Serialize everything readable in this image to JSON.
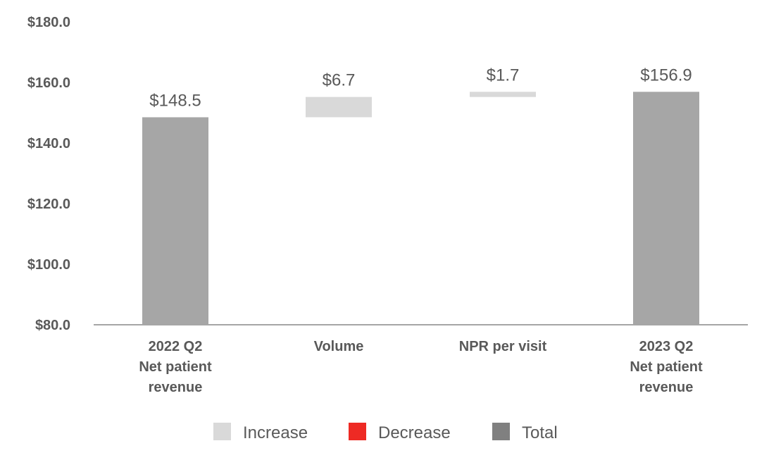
{
  "chart_data": {
    "type": "bar",
    "subtype": "waterfall",
    "categories": [
      [
        "2022 Q2",
        "Net patient",
        "revenue"
      ],
      [
        "Volume"
      ],
      [
        "NPR per visit"
      ],
      [
        "2023 Q2",
        "Net patient",
        "revenue"
      ]
    ],
    "steps": [
      {
        "kind": "total",
        "value": 148.5,
        "label": "$148.5"
      },
      {
        "kind": "increase",
        "value": 6.7,
        "label": "$6.7"
      },
      {
        "kind": "increase",
        "value": 1.7,
        "label": "$1.7"
      },
      {
        "kind": "total",
        "value": 156.9,
        "label": "$156.9"
      }
    ],
    "y_tick_labels": [
      "$80.0",
      "$100.0",
      "$120.0",
      "$140.0",
      "$160.0",
      "$180.0"
    ],
    "y_ticks": [
      80,
      100,
      120,
      140,
      160,
      180
    ],
    "ylim": [
      80,
      180
    ],
    "grid": false,
    "legend": {
      "position": "bottom",
      "items": [
        {
          "label": "Increase",
          "color": "#d9d9d9"
        },
        {
          "label": "Decrease",
          "color": "#ee2a24"
        },
        {
          "label": "Total",
          "color": "#808080"
        }
      ]
    },
    "colors": {
      "increase": "#d9d9d9",
      "decrease": "#ee2a24",
      "total": "#a6a6a6",
      "axis": "#a6a6a6",
      "text": "#595959"
    }
  }
}
